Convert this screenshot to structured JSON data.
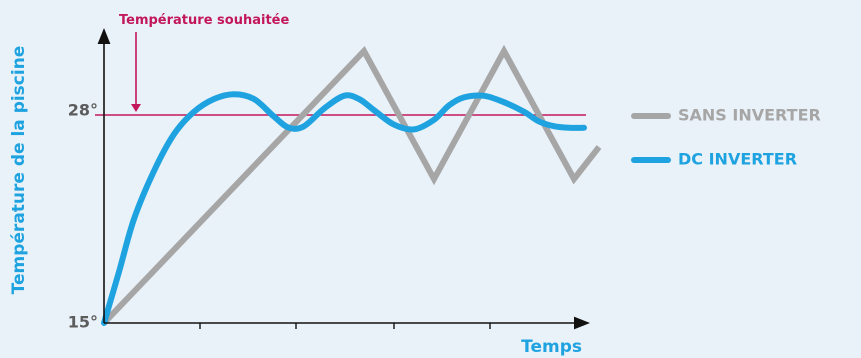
{
  "chart_data": {
    "type": "line",
    "title": "",
    "xlabel": "Temps",
    "ylabel": "Température de la piscine",
    "y_ticks": [
      {
        "value": 15,
        "label": "15°"
      },
      {
        "value": 28,
        "label": "28°"
      }
    ],
    "ylim": [
      15,
      33
    ],
    "xlim": [
      0,
      10
    ],
    "grid": false,
    "legend_position": "right",
    "target": {
      "label": "Température souhaitée",
      "value": 28,
      "color": "#c2185b"
    },
    "series": [
      {
        "name": "SANS INVERTER",
        "color": "#a6a6a6",
        "x": [
          0,
          5.2,
          6.6,
          8.0,
          9.4,
          9.9
        ],
        "y": [
          15,
          32,
          24,
          32,
          24,
          26
        ]
      },
      {
        "name": "DC INVERTER",
        "color": "#1fa3e0",
        "x": [
          0,
          0.3,
          0.6,
          1.0,
          1.4,
          1.8,
          2.2,
          2.6,
          3.0,
          3.4,
          3.7,
          4.0,
          4.4,
          4.8,
          5.1,
          5.4,
          5.8,
          6.2,
          6.6,
          6.9,
          7.2,
          7.6,
          8.0,
          8.4,
          8.7,
          9.0,
          9.3,
          9.6
        ],
        "y": [
          15,
          18.2,
          21.5,
          24.5,
          26.8,
          28.2,
          29.0,
          29.3,
          29.0,
          27.9,
          27.2,
          27.3,
          28.4,
          29.2,
          29.0,
          28.3,
          27.4,
          27.1,
          27.7,
          28.6,
          29.1,
          29.2,
          28.8,
          28.2,
          27.6,
          27.3,
          27.2,
          27.2
        ]
      }
    ]
  }
}
